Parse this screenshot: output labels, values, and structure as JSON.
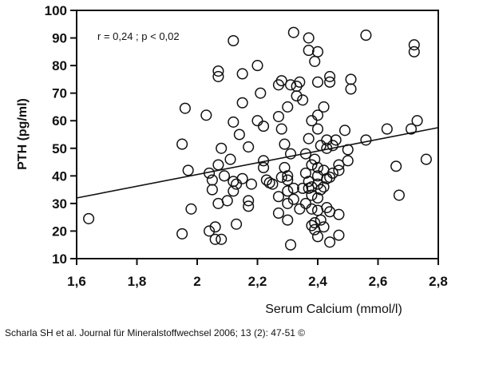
{
  "chart_data": {
    "type": "scatter",
    "xlabel": "Serum Calcium (mmol/l)",
    "ylabel": "PTH (pg/ml)",
    "annotation": "r =  0,24 ; p < 0,02",
    "xlim": [
      1.6,
      2.8
    ],
    "ylim": [
      10,
      100
    ],
    "x_ticks": [
      1.6,
      1.8,
      2.0,
      2.2,
      2.4,
      2.6,
      2.8
    ],
    "x_tick_labels": [
      "1,6",
      "1,8",
      "2",
      "2,2",
      "2,4",
      "2,6",
      "2,8"
    ],
    "y_ticks": [
      10,
      20,
      30,
      40,
      50,
      60,
      70,
      80,
      90,
      100
    ],
    "y_tick_labels": [
      "10",
      "20",
      "30",
      "40",
      "50",
      "60",
      "70",
      "80",
      "90",
      "100"
    ],
    "grid": false,
    "regression_line": {
      "x": [
        1.6,
        2.8
      ],
      "y": [
        32,
        57.5
      ]
    },
    "points": [
      [
        1.64,
        24.5
      ],
      [
        1.95,
        51.5
      ],
      [
        1.95,
        19
      ],
      [
        1.96,
        64.5
      ],
      [
        1.97,
        42
      ],
      [
        1.98,
        28
      ],
      [
        2.03,
        62
      ],
      [
        2.04,
        41
      ],
      [
        2.04,
        20
      ],
      [
        2.05,
        38.5
      ],
      [
        2.05,
        35
      ],
      [
        2.06,
        17
      ],
      [
        2.06,
        21.5
      ],
      [
        2.07,
        78
      ],
      [
        2.07,
        76
      ],
      [
        2.07,
        44
      ],
      [
        2.07,
        30
      ],
      [
        2.08,
        17
      ],
      [
        2.08,
        50
      ],
      [
        2.09,
        40
      ],
      [
        2.1,
        31
      ],
      [
        2.11,
        46
      ],
      [
        2.12,
        89
      ],
      [
        2.12,
        38
      ],
      [
        2.12,
        34.5
      ],
      [
        2.12,
        59.5
      ],
      [
        2.13,
        22.5
      ],
      [
        2.13,
        37
      ],
      [
        2.14,
        55
      ],
      [
        2.15,
        66.5
      ],
      [
        2.15,
        77
      ],
      [
        2.15,
        39
      ],
      [
        2.17,
        31
      ],
      [
        2.17,
        29
      ],
      [
        2.17,
        50.5
      ],
      [
        2.18,
        37
      ],
      [
        2.2,
        80
      ],
      [
        2.2,
        60
      ],
      [
        2.21,
        70
      ],
      [
        2.22,
        45.5
      ],
      [
        2.22,
        43
      ],
      [
        2.22,
        58
      ],
      [
        2.23,
        38.5
      ],
      [
        2.24,
        37.5
      ],
      [
        2.25,
        37
      ],
      [
        2.27,
        73
      ],
      [
        2.27,
        61.5
      ],
      [
        2.27,
        32.5
      ],
      [
        2.27,
        26.5
      ],
      [
        2.28,
        57
      ],
      [
        2.28,
        74.5
      ],
      [
        2.28,
        39.5
      ],
      [
        2.29,
        51.5
      ],
      [
        2.29,
        43
      ],
      [
        2.3,
        65
      ],
      [
        2.3,
        38.5
      ],
      [
        2.3,
        40
      ],
      [
        2.3,
        34.5
      ],
      [
        2.3,
        30
      ],
      [
        2.3,
        24
      ],
      [
        2.31,
        73
      ],
      [
        2.31,
        48
      ],
      [
        2.31,
        15
      ],
      [
        2.32,
        92
      ],
      [
        2.32,
        35.5
      ],
      [
        2.32,
        31.5
      ],
      [
        2.33,
        72.5
      ],
      [
        2.33,
        69
      ],
      [
        2.34,
        74
      ],
      [
        2.34,
        28
      ],
      [
        2.35,
        67.5
      ],
      [
        2.35,
        35.5
      ],
      [
        2.36,
        48
      ],
      [
        2.36,
        41
      ],
      [
        2.36,
        30
      ],
      [
        2.37,
        90
      ],
      [
        2.37,
        85.5
      ],
      [
        2.37,
        53.5
      ],
      [
        2.37,
        38
      ],
      [
        2.37,
        35.5
      ],
      [
        2.38,
        60
      ],
      [
        2.38,
        44
      ],
      [
        2.38,
        36
      ],
      [
        2.38,
        33
      ],
      [
        2.38,
        28
      ],
      [
        2.38,
        22
      ],
      [
        2.39,
        81.5
      ],
      [
        2.39,
        46
      ],
      [
        2.39,
        23
      ],
      [
        2.39,
        20.5
      ],
      [
        2.4,
        85
      ],
      [
        2.4,
        74
      ],
      [
        2.4,
        62
      ],
      [
        2.4,
        57
      ],
      [
        2.4,
        43
      ],
      [
        2.4,
        40
      ],
      [
        2.4,
        37
      ],
      [
        2.4,
        32
      ],
      [
        2.4,
        27.5
      ],
      [
        2.4,
        18
      ],
      [
        2.41,
        51
      ],
      [
        2.41,
        35
      ],
      [
        2.41,
        24
      ],
      [
        2.42,
        65
      ],
      [
        2.42,
        42
      ],
      [
        2.42,
        36
      ],
      [
        2.42,
        21.5
      ],
      [
        2.43,
        53
      ],
      [
        2.43,
        50
      ],
      [
        2.43,
        39
      ],
      [
        2.43,
        28.5
      ],
      [
        2.44,
        76
      ],
      [
        2.44,
        74
      ],
      [
        2.44,
        39.5
      ],
      [
        2.44,
        27
      ],
      [
        2.44,
        16
      ],
      [
        2.45,
        51
      ],
      [
        2.45,
        41
      ],
      [
        2.46,
        53
      ],
      [
        2.47,
        44
      ],
      [
        2.47,
        42
      ],
      [
        2.47,
        26
      ],
      [
        2.47,
        18.5
      ],
      [
        2.49,
        56.5
      ],
      [
        2.5,
        49.5
      ],
      [
        2.5,
        45.5
      ],
      [
        2.51,
        75
      ],
      [
        2.51,
        71.5
      ],
      [
        2.56,
        91
      ],
      [
        2.56,
        53
      ],
      [
        2.63,
        57
      ],
      [
        2.66,
        43.5
      ],
      [
        2.67,
        33
      ],
      [
        2.71,
        57
      ],
      [
        2.72,
        87.5
      ],
      [
        2.72,
        85
      ],
      [
        2.73,
        60
      ],
      [
        2.76,
        46
      ]
    ]
  },
  "caption": "Scharla SH et al. Journal für Mineralstoffwechsel 2006; 13 (2): 47-51 ©"
}
